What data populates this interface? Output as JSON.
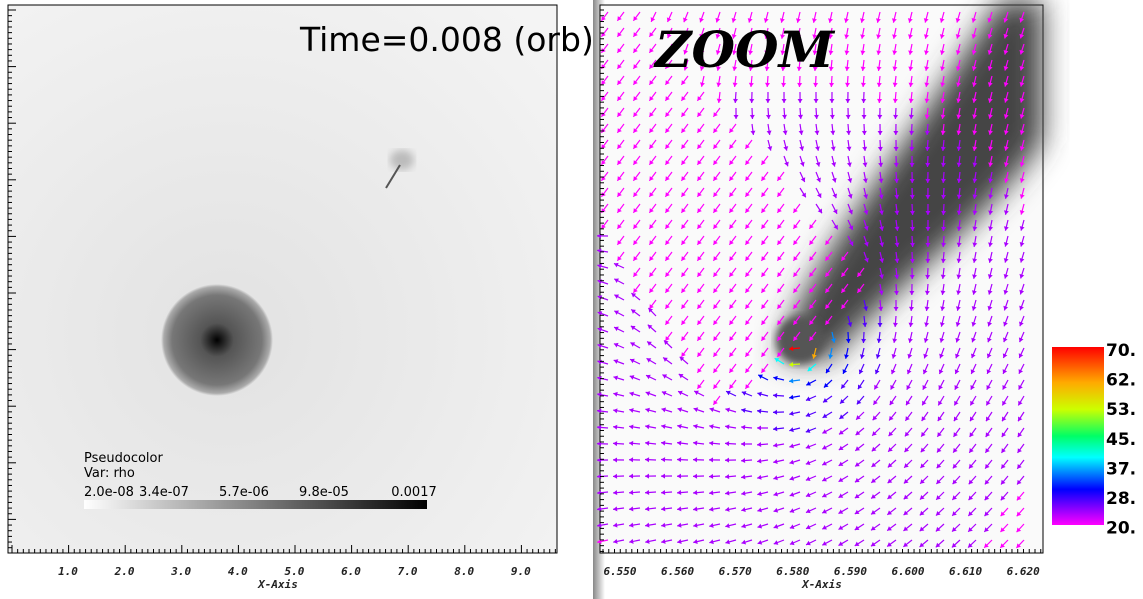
{
  "left_panel": {
    "time_label": "Time=0.008 (orb)",
    "legend": {
      "title": "Pseudocolor",
      "variable": "Var: rho",
      "labels": [
        "2.0e-08",
        "3.4e-07",
        "5.7e-06",
        "9.8e-05",
        "0.0017"
      ]
    },
    "x_ticks": [
      "1.0",
      "2.0",
      "3.0",
      "4.0",
      "5.0",
      "6.0",
      "7.0",
      "8.0",
      "9.0"
    ],
    "x_axis_label": "X-Axis"
  },
  "right_panel": {
    "zoom_label": "ZOOM",
    "x_ticks": [
      "6.550",
      "6.560",
      "6.570",
      "6.580",
      "6.590",
      "6.600",
      "6.610",
      "6.620"
    ],
    "x_axis_label": "X-Axis",
    "colorbar_labels": [
      "70.",
      "62.",
      "53.",
      "45.",
      "37.",
      "28.",
      "20."
    ]
  }
}
